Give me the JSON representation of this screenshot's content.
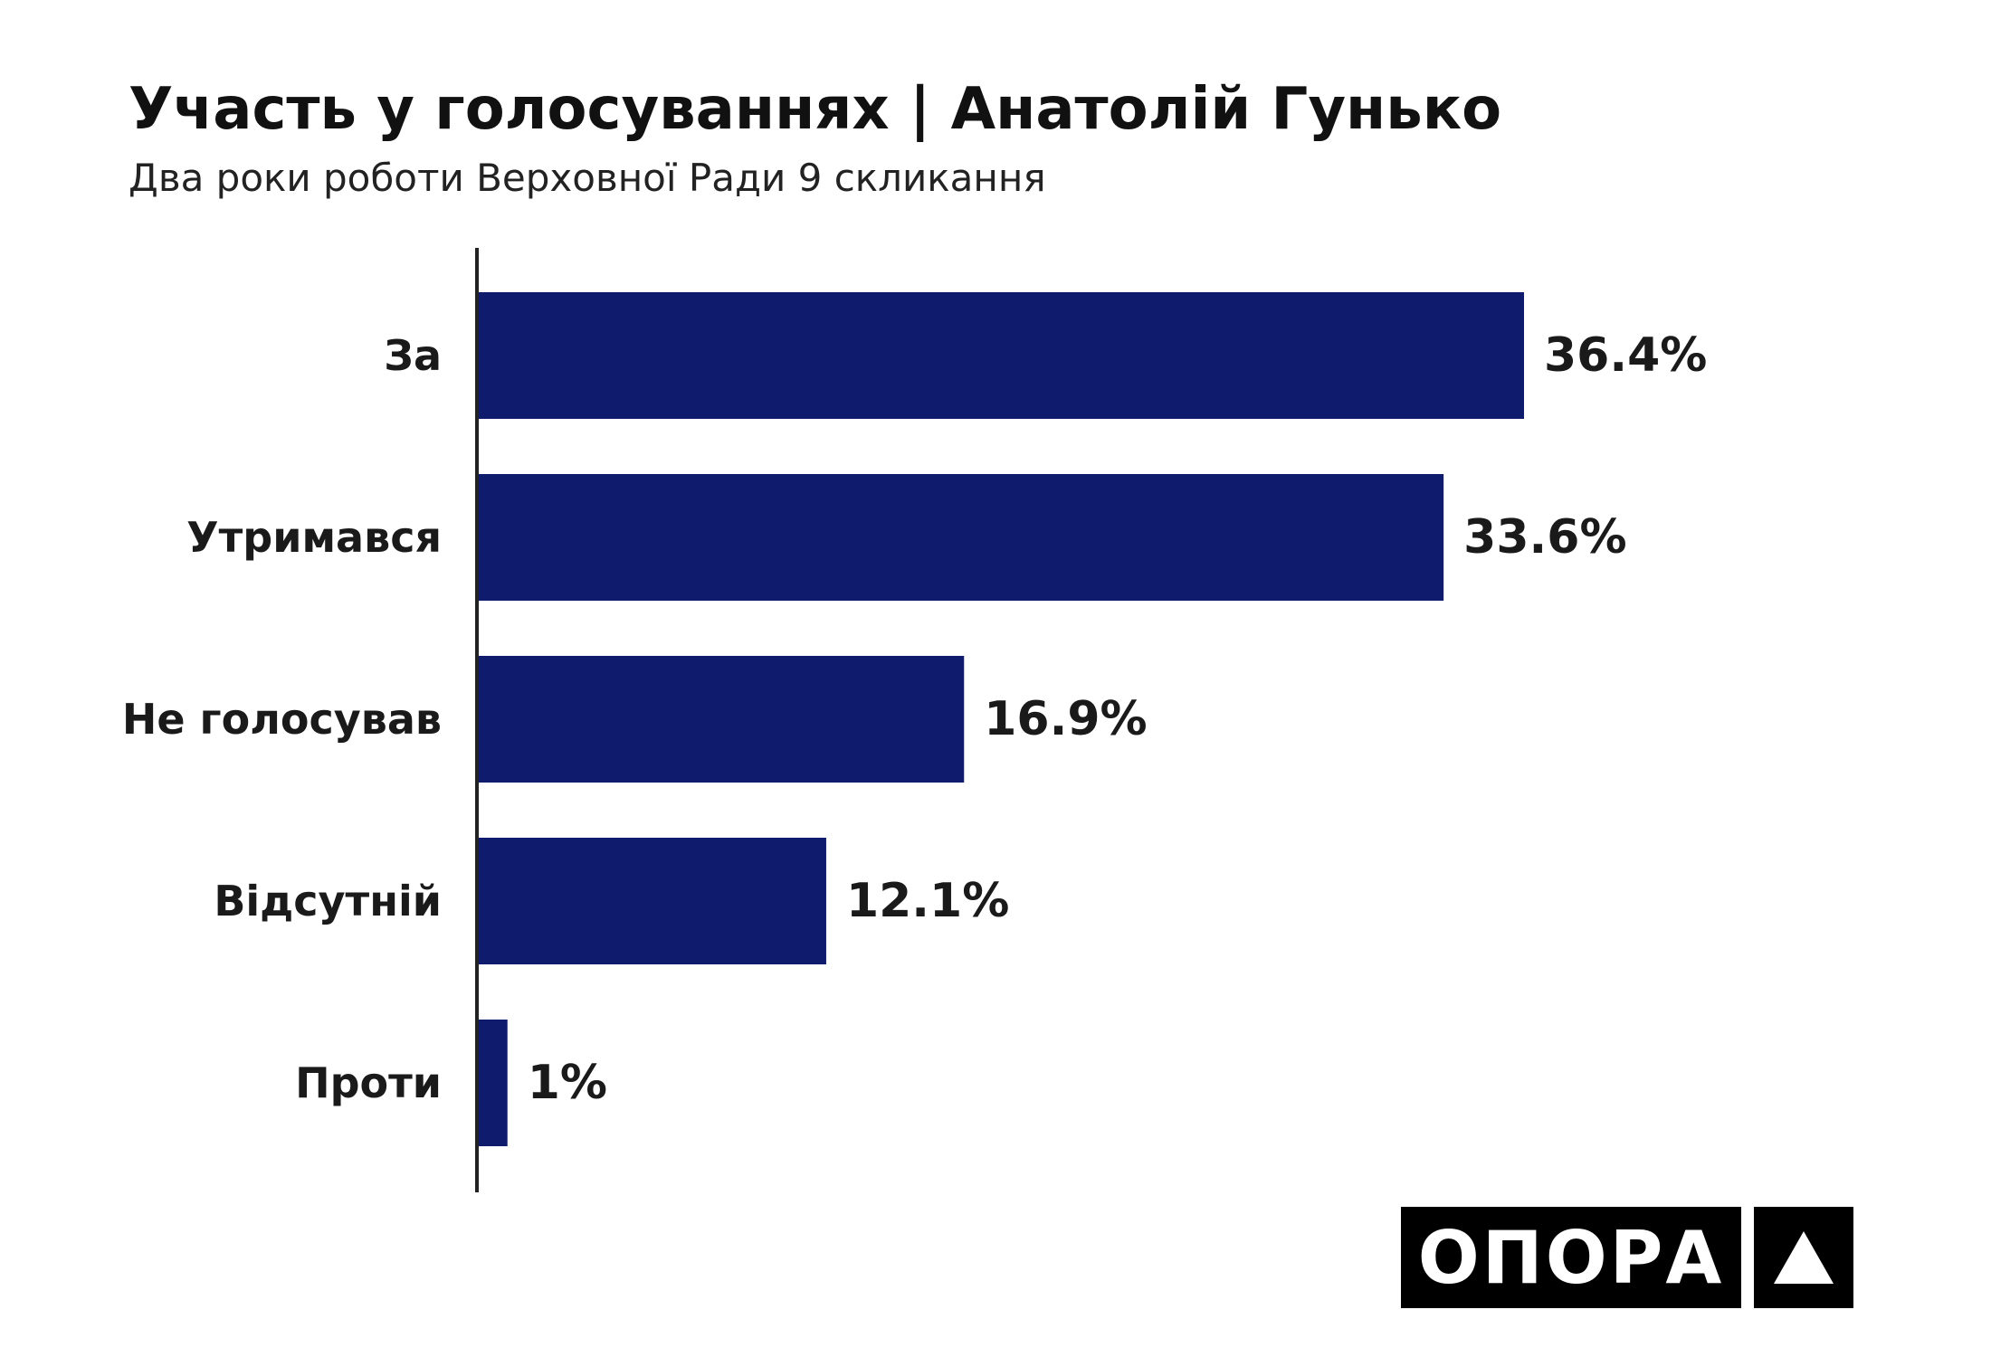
{
  "header": {
    "title": "Участь у голосуваннях | Анатолій Гунько",
    "subtitle": "Два роки роботи Верховної Ради 9 скликання"
  },
  "chart_data": {
    "type": "bar",
    "orientation": "horizontal",
    "categories": [
      "За",
      "Утримався",
      "Не голосував",
      "Відсутній",
      "Проти"
    ],
    "values": [
      36.4,
      33.6,
      16.9,
      12.1,
      1
    ],
    "value_labels": [
      "36.4%",
      "33.6%",
      "16.9%",
      "12.1%",
      "1%"
    ],
    "unit": "%",
    "xlim": [
      0,
      36.4
    ],
    "grid": false,
    "bar_color": "#0f1c6e"
  },
  "logo": {
    "text": "ОПОРА",
    "mark": "triangle-icon",
    "color": "#000000"
  }
}
